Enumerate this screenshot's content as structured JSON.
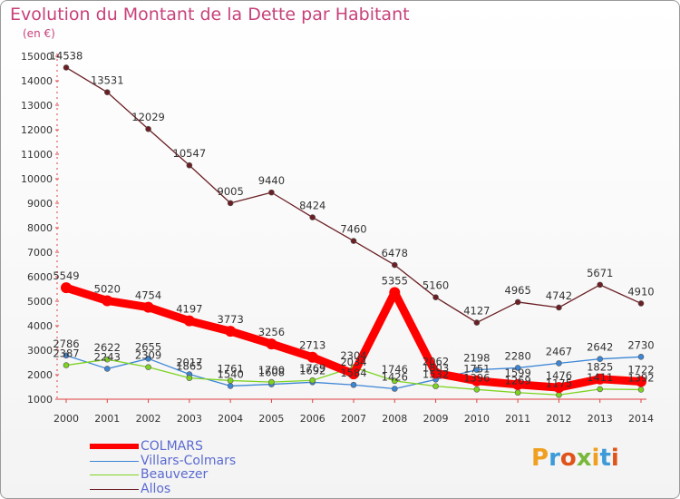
{
  "title": "Evolution du Montant de la Dette par Habitant",
  "subtitle": "(en €)",
  "logo": {
    "text": "Proxiti",
    "colors": [
      "#f0a020",
      "#3c9bd8",
      "#e0531a",
      "#79b83a",
      "#f0a020",
      "#3c9bd8",
      "#e0531a"
    ]
  },
  "chart_data": {
    "type": "line",
    "title": "Evolution du Montant de la Dette par Habitant",
    "ylabel": "(en €)",
    "x": [
      "2000",
      "2001",
      "2002",
      "2003",
      "2004",
      "2005",
      "2006",
      "2007",
      "2008",
      "2009",
      "2010",
      "2011",
      "2012",
      "2013",
      "2014"
    ],
    "ylim": [
      1000,
      15000
    ],
    "yticks": [
      1000,
      2000,
      3000,
      4000,
      5000,
      6000,
      7000,
      8000,
      9000,
      10000,
      11000,
      12000,
      13000,
      14000,
      15000
    ],
    "grid": false,
    "legend": "bottom-left",
    "series": [
      {
        "name": "COLMARS",
        "color": "#ff0000",
        "values": [
          5549,
          5020,
          4754,
          4197,
          3773,
          3256,
          2713,
          2034,
          5355,
          2062,
          1751,
          1599,
          1476,
          1825,
          1722
        ],
        "labels": [
          "5549",
          "5020",
          "4754",
          "4197",
          "3773",
          "3256",
          "2713",
          "2034",
          "5355",
          "2062",
          "1751",
          "1599",
          "1476",
          "1825",
          "1722"
        ]
      },
      {
        "name": "Villars-Colmars",
        "color": "#3c86d6",
        "values": [
          2786,
          2243,
          2655,
          2017,
          1540,
          1608,
          1692,
          1584,
          1426,
          1803,
          2198,
          2280,
          2467,
          2642,
          2730
        ],
        "labels": [
          "2786",
          "2243",
          "2655",
          "2017",
          "1540",
          "1608",
          "1692",
          "1584",
          "1426",
          "1803",
          "2198",
          "2280",
          "2467",
          "2642",
          "2730"
        ]
      },
      {
        "name": "Beauvezer",
        "color": "#7ed321",
        "values": [
          2387,
          2622,
          2309,
          1865,
          1761,
          1700,
          1769,
          2304,
          1746,
          1532,
          1396,
          1269,
          1175,
          1411,
          1392
        ],
        "labels": [
          "2387",
          "2622",
          "2309",
          "1865",
          "1761",
          "1700",
          "1769",
          "2304",
          "1746",
          "1532",
          "1396",
          "1269",
          "1175",
          "1411",
          "1392"
        ]
      },
      {
        "name": "Allos",
        "color": "#6b1f24",
        "values": [
          14538,
          13531,
          12029,
          10547,
          9005,
          9440,
          8424,
          7460,
          6478,
          5160,
          4127,
          4965,
          4742,
          5671,
          4910
        ],
        "labels": [
          "14538",
          "13531",
          "12029",
          "10547",
          "9005",
          "9440",
          "8424",
          "7460",
          "6478",
          "5160",
          "4127",
          "4965",
          "4742",
          "5671",
          "4910"
        ]
      }
    ]
  }
}
